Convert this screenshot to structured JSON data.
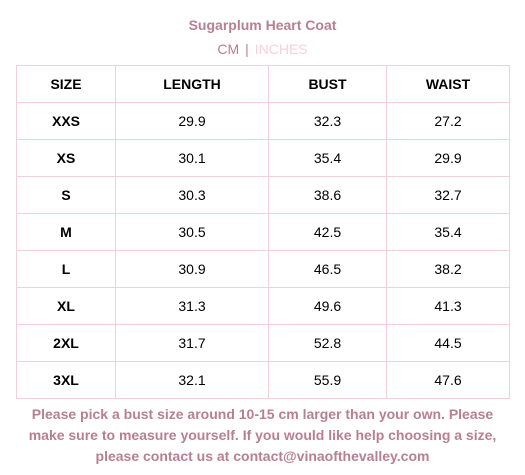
{
  "title": "Sugarplum Heart Coat",
  "units": {
    "cm_label": "CM",
    "separator": "|",
    "inches_label": "INCHES",
    "selected": "CM"
  },
  "colors": {
    "accent": "#b87f91",
    "inactive": "#f2d3dc",
    "border": "#f1d0db"
  },
  "table": {
    "headers": [
      "SIZE",
      "LENGTH",
      "BUST",
      "WAIST"
    ],
    "rows": [
      [
        "XXS",
        "29.9",
        "32.3",
        "27.2"
      ],
      [
        "XS",
        "30.1",
        "35.4",
        "29.9"
      ],
      [
        "S",
        "30.3",
        "38.6",
        "32.7"
      ],
      [
        "M",
        "30.5",
        "42.5",
        "35.4"
      ],
      [
        "L",
        "30.9",
        "46.5",
        "38.2"
      ],
      [
        "XL",
        "31.3",
        "49.6",
        "41.3"
      ],
      [
        "2XL",
        "31.7",
        "52.8",
        "44.5"
      ],
      [
        "3XL",
        "32.1",
        "55.9",
        "47.6"
      ]
    ]
  },
  "note": {
    "line1": "Please pick a bust size around 10-15 cm larger than your own. Please",
    "line2": "make sure to measure yourself. If you would like help choosing a size,",
    "line3": "please contact us at contact@vinaofthevalley.com"
  }
}
